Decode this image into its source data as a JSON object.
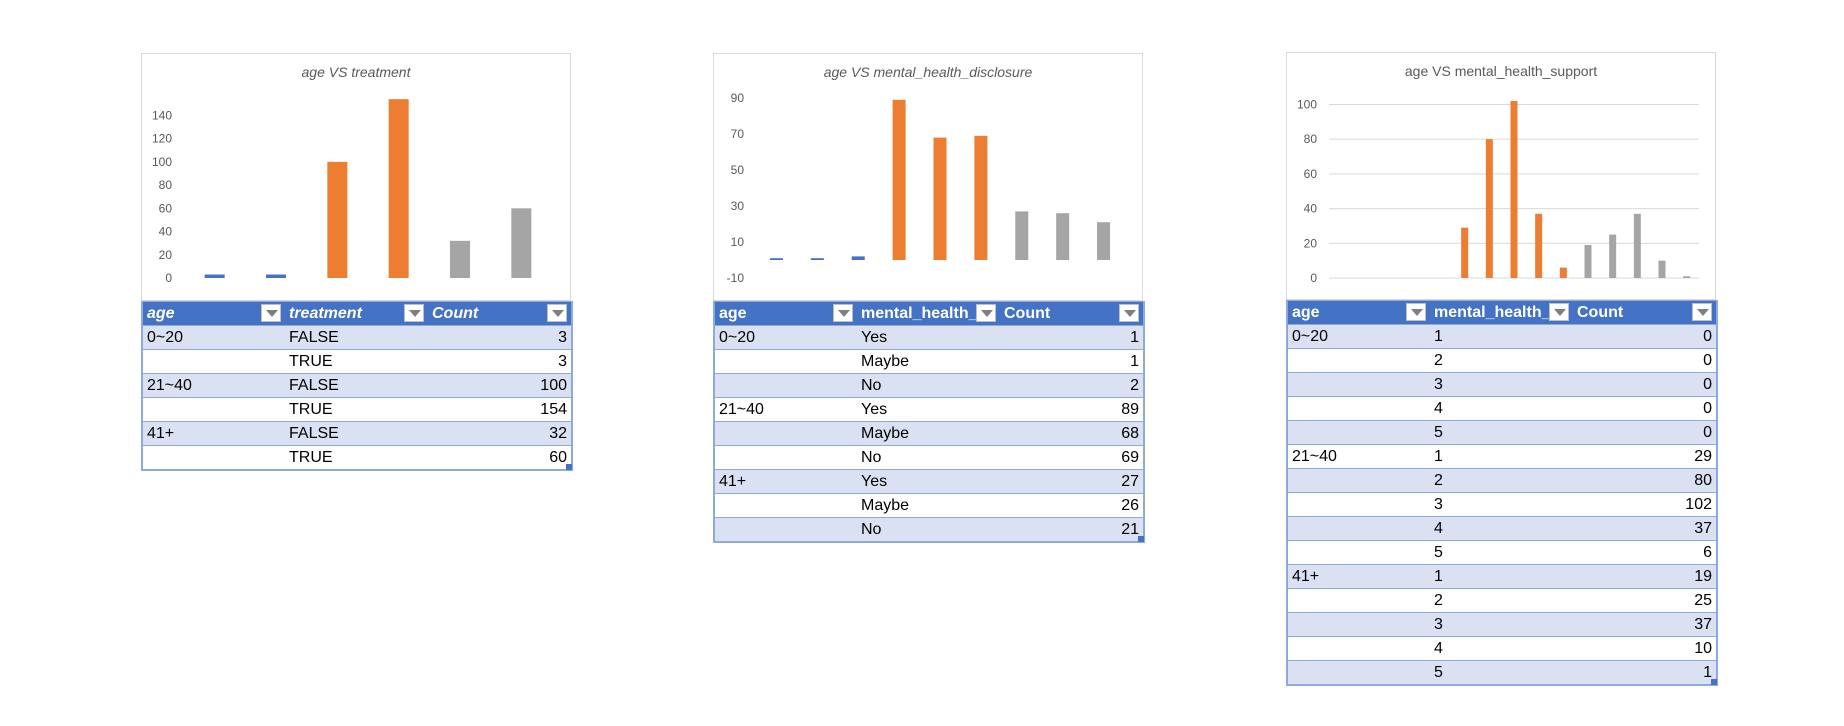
{
  "chart_data": [
    {
      "type": "bar",
      "title": "age VS treatment",
      "title_italic": true,
      "categories": [
        "0~20 FALSE",
        "0~20 TRUE",
        "21~40 FALSE",
        "21~40 TRUE",
        "41+ FALSE",
        "41+ TRUE"
      ],
      "values": [
        3,
        3,
        100,
        154,
        32,
        60
      ],
      "bar_colors": [
        "#4472c4",
        "#4472c4",
        "#ed7d31",
        "#ed7d31",
        "#a5a5a5",
        "#a5a5a5"
      ],
      "yticks": [
        0,
        20,
        40,
        60,
        80,
        100,
        120,
        140
      ],
      "ylim": [
        0,
        155
      ],
      "grid": false
    },
    {
      "type": "bar",
      "title": "age VS mental_health_disclosure",
      "title_italic": true,
      "categories": [
        "0~20 Yes",
        "0~20 Maybe",
        "0~20 No",
        "21~40 Yes",
        "21~40 Maybe",
        "21~40 No",
        "41+ Yes",
        "41+ Maybe",
        "41+ No"
      ],
      "values": [
        1,
        1,
        2,
        89,
        68,
        69,
        27,
        26,
        21
      ],
      "bar_colors": [
        "#4472c4",
        "#4472c4",
        "#4472c4",
        "#ed7d31",
        "#ed7d31",
        "#ed7d31",
        "#a5a5a5",
        "#a5a5a5",
        "#a5a5a5"
      ],
      "yticks": [
        -10,
        10,
        30,
        50,
        70,
        90
      ],
      "ylim": [
        -10,
        90
      ],
      "grid": false
    },
    {
      "type": "bar",
      "title": "age VS mental_health_support",
      "title_italic": false,
      "categories": [
        "0~20 1",
        "0~20 2",
        "0~20 3",
        "0~20 4",
        "0~20 5",
        "21~40 1",
        "21~40 2",
        "21~40 3",
        "21~40 4",
        "21~40 5",
        "41+ 1",
        "41+ 2",
        "41+ 3",
        "41+ 4",
        "41+ 5"
      ],
      "values": [
        0,
        0,
        0,
        0,
        0,
        29,
        80,
        102,
        37,
        6,
        19,
        25,
        37,
        10,
        1
      ],
      "bar_colors": [
        "#4472c4",
        "#4472c4",
        "#4472c4",
        "#4472c4",
        "#4472c4",
        "#ed7d31",
        "#ed7d31",
        "#ed7d31",
        "#ed7d31",
        "#ed7d31",
        "#a5a5a5",
        "#a5a5a5",
        "#a5a5a5",
        "#a5a5a5",
        "#a5a5a5"
      ],
      "yticks": [
        0,
        20,
        40,
        60,
        80,
        100
      ],
      "ylim": [
        0,
        102
      ],
      "grid": true
    }
  ],
  "tables": [
    {
      "headers": [
        "age",
        "treatment",
        "Count"
      ],
      "italic_headers": true,
      "rows": [
        [
          "0~20",
          "FALSE",
          "3"
        ],
        [
          "",
          "TRUE",
          "3"
        ],
        [
          "21~40",
          "FALSE",
          "100"
        ],
        [
          "",
          "TRUE",
          "154"
        ],
        [
          "41+",
          "FALSE",
          "32"
        ],
        [
          "",
          "TRUE",
          "60"
        ]
      ]
    },
    {
      "headers": [
        "age",
        "mental_health_",
        "Count"
      ],
      "italic_headers": false,
      "rows": [
        [
          "0~20",
          "Yes",
          "1"
        ],
        [
          "",
          "Maybe",
          "1"
        ],
        [
          "",
          "No",
          "2"
        ],
        [
          "21~40",
          "Yes",
          "89"
        ],
        [
          "",
          "Maybe",
          "68"
        ],
        [
          "",
          "No",
          "69"
        ],
        [
          "41+",
          "Yes",
          "27"
        ],
        [
          "",
          "Maybe",
          "26"
        ],
        [
          "",
          "No",
          "21"
        ]
      ]
    },
    {
      "headers": [
        "age",
        "mental_health_",
        "Count"
      ],
      "italic_headers": false,
      "rows": [
        [
          "0~20",
          "1",
          "0"
        ],
        [
          "",
          "2",
          "0"
        ],
        [
          "",
          "3",
          "0"
        ],
        [
          "",
          "4",
          "0"
        ],
        [
          "",
          "5",
          "0"
        ],
        [
          "21~40",
          "1",
          "29"
        ],
        [
          "",
          "2",
          "80"
        ],
        [
          "",
          "3",
          "102"
        ],
        [
          "",
          "4",
          "37"
        ],
        [
          "",
          "5",
          "6"
        ],
        [
          "41+",
          "1",
          "19"
        ],
        [
          "",
          "2",
          "25"
        ],
        [
          "",
          "3",
          "37"
        ],
        [
          "",
          "4",
          "10"
        ],
        [
          "",
          "5",
          "1"
        ]
      ]
    }
  ]
}
